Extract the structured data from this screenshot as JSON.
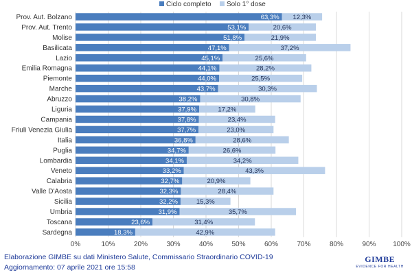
{
  "chart_data": {
    "type": "bar",
    "orientation": "horizontal",
    "stacked": true,
    "categories": [
      "Prov. Aut. Bolzano",
      "Prov. Aut. Trento",
      "Molise",
      "Basilicata",
      "Lazio",
      "Emilia Romagna",
      "Piemonte",
      "Marche",
      "Abruzzo",
      "Liguria",
      "Campania",
      "Friuli Venezia Giulia",
      "Italia",
      "Puglia",
      "Lombardia",
      "Veneto",
      "Calabria",
      "Valle D'Aosta",
      "Sicilia",
      "Umbria",
      "Toscana",
      "Sardegna"
    ],
    "series": [
      {
        "name": "Ciclo completo",
        "color": "#4a7dbe",
        "values": [
          63.3,
          53.1,
          51.8,
          47.1,
          45.1,
          44.1,
          44.0,
          43.7,
          38.2,
          37.9,
          37.8,
          37.7,
          36.8,
          34.7,
          34.1,
          33.2,
          32.7,
          32.3,
          32.2,
          31.9,
          23.6,
          18.3
        ],
        "labels": [
          "63,3%",
          "53,1%",
          "51,8%",
          "47,1%",
          "45,1%",
          "44,1%",
          "44,0%",
          "43,7%",
          "38,2%",
          "37,9%",
          "37,8%",
          "37,7%",
          "36,8%",
          "34,7%",
          "34,1%",
          "33,2%",
          "32,7%",
          "32,3%",
          "32,2%",
          "31,9%",
          "23,6%",
          "18,3%"
        ]
      },
      {
        "name": "Solo 1° dose",
        "color": "#b9cfea",
        "values": [
          12.3,
          20.6,
          21.9,
          37.2,
          25.6,
          28.2,
          25.5,
          30.3,
          30.8,
          17.2,
          23.4,
          23.0,
          28.6,
          26.6,
          34.2,
          43.3,
          20.9,
          28.4,
          15.3,
          35.7,
          31.4,
          42.9
        ],
        "labels": [
          "12,3%",
          "20,6%",
          "21,9%",
          "37,2%",
          "25,6%",
          "28,2%",
          "25,5%",
          "30,3%",
          "30,8%",
          "17,2%",
          "23,4%",
          "23,0%",
          "28,6%",
          "26,6%",
          "34,2%",
          "43,3%",
          "20,9%",
          "28,4%",
          "15,3%",
          "35,7%",
          "31,4%",
          "42,9%"
        ]
      }
    ],
    "xlim": [
      0,
      100
    ],
    "xticks": [
      "0%",
      "10%",
      "20%",
      "30%",
      "40%",
      "50%",
      "60%",
      "70%",
      "80%",
      "90%",
      "100%"
    ],
    "grid": true,
    "legend_position": "top-center",
    "title": "",
    "xlabel": "",
    "ylabel": ""
  },
  "footer": {
    "source": "Elaborazione GIMBE su dati Ministero Salute, Commissario Straordinario COVID-19",
    "updated": "Aggiornamento: 07 aprile 2021 ore 15:58"
  },
  "logo": {
    "text": "GIMBE",
    "subtitle": "EVIDENCE FOR HEALTH"
  }
}
